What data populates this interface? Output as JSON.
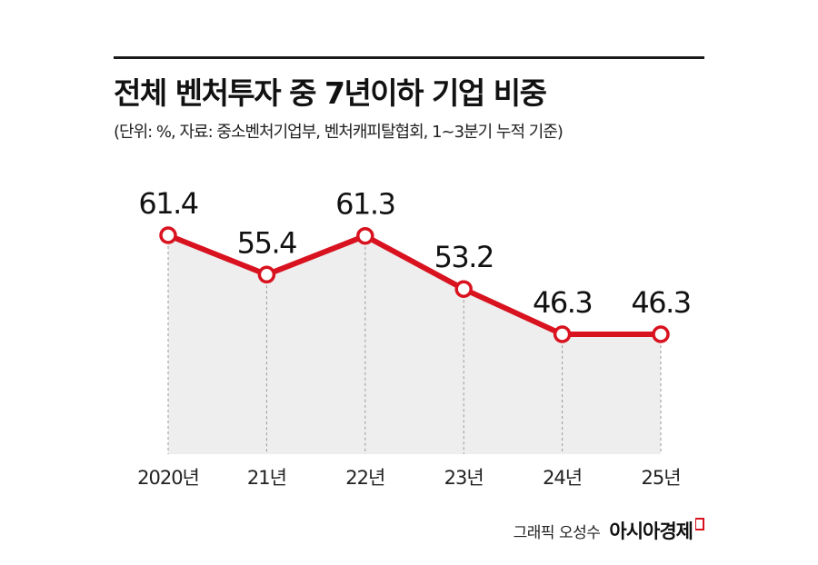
{
  "header": {
    "title": "전체 벤처투자 중 7년이하 기업 비중",
    "subtitle": "(단위: %, 자료: 중소벤처기업부, 벤처캐피탈협회, 1~3분기 누적 기준)"
  },
  "credit": {
    "text": "그래픽 오성수",
    "brand": "아시아경제"
  },
  "colors": {
    "line": "#d8121f",
    "area": "#eeeeee",
    "marker_fill": "#ffffff"
  },
  "chart_data": {
    "type": "line",
    "categories": [
      "2020년",
      "21년",
      "22년",
      "23년",
      "24년",
      "25년"
    ],
    "values": [
      61.4,
      55.4,
      61.3,
      53.2,
      46.3,
      46.3
    ],
    "data_labels": [
      "61.4",
      "55.4",
      "61.3",
      "53.2",
      "46.3",
      "46.3"
    ],
    "title": "전체 벤처투자 중 7년이하 기업 비중",
    "grid": false,
    "area_fill": true
  }
}
